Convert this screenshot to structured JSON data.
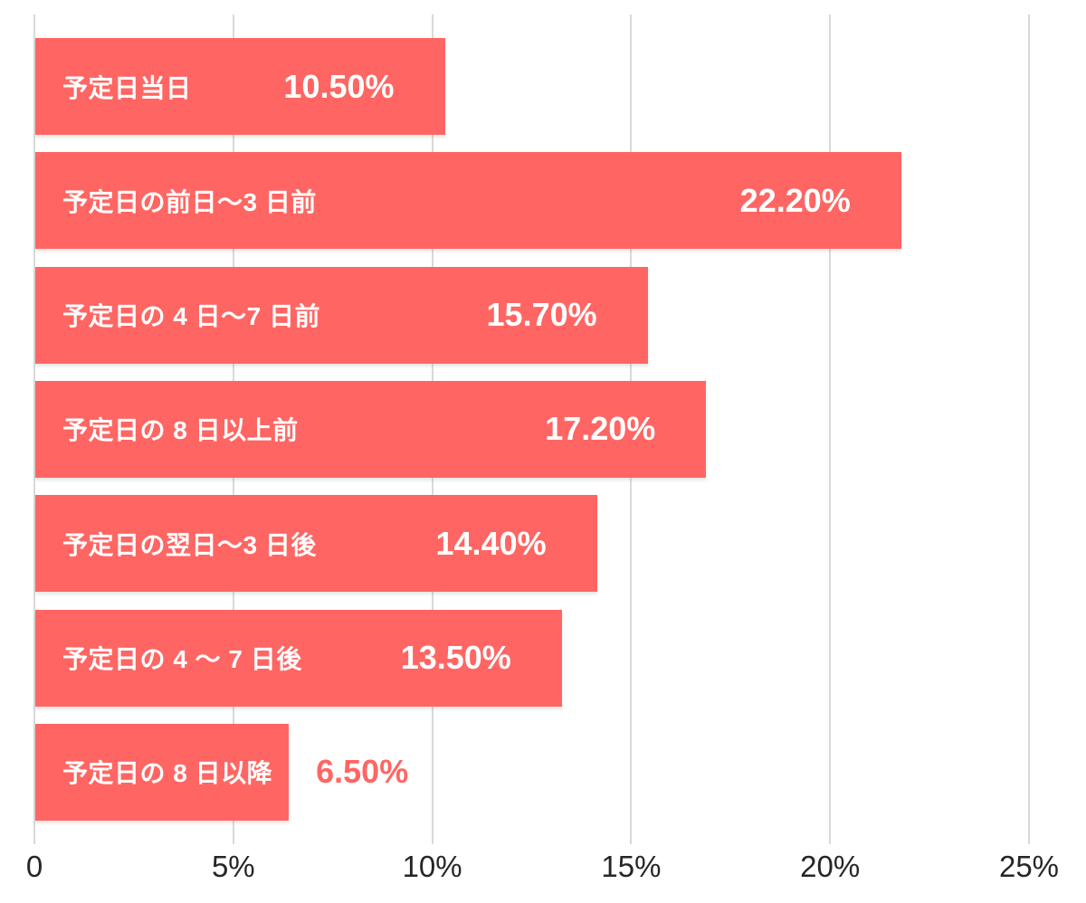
{
  "chart_data": {
    "type": "bar",
    "orientation": "horizontal",
    "title": "",
    "xlabel": "",
    "ylabel": "",
    "categories": [
      "予定日当日",
      "予定日の前日～3 日前",
      "予定日の 4 日～7 日前",
      "予定日の 8 日以上前",
      "予定日の翌日～3 日後",
      "予定日の 4 ～ 7 日後",
      "予定日の 8 日以降"
    ],
    "values": [
      10.5,
      22.2,
      15.7,
      17.2,
      14.4,
      13.5,
      6.5
    ],
    "value_labels": [
      "10.50%",
      "22.20%",
      "15.70%",
      "17.20%",
      "14.40%",
      "13.50%",
      "6.50%"
    ],
    "value_label_placement": [
      "inside",
      "inside",
      "inside",
      "inside",
      "inside",
      "inside",
      "outside"
    ],
    "x_ticks": [
      {
        "value": 0,
        "label": "0"
      },
      {
        "value": 5,
        "label": "5%"
      },
      {
        "value": 10,
        "label": "10%"
      },
      {
        "value": 15,
        "label": "15%"
      },
      {
        "value": 20,
        "label": "20%"
      },
      {
        "value": 25,
        "label": "25%"
      }
    ],
    "xlim": [
      0,
      25.5
    ],
    "x_tick_max": 25,
    "grid": "vertical-only",
    "legend_position": "none",
    "colors": {
      "bar": "#FF6663",
      "value_label_inside": "#FFFFFF",
      "value_label_outside": "#FF6663",
      "axis_tick_label": "#262626",
      "gridline": "#D9D9D9",
      "background": "#FFFFFF"
    }
  }
}
